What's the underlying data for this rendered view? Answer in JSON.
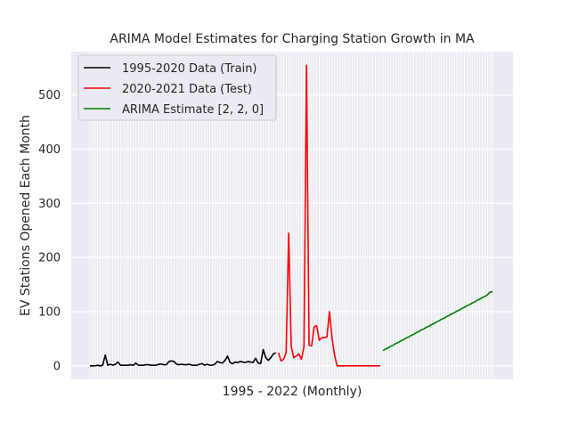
{
  "chart_data": {
    "type": "line",
    "title": "ARIMA Model Estimates for Charging Station Growth in MA",
    "xlabel": "1995 - 2022 (Monthly)",
    "ylabel": "EV Stations Opened Each Month",
    "ylim": [
      -25,
      580
    ],
    "yticks": [
      0,
      100,
      200,
      300,
      400,
      500
    ],
    "grid": true,
    "legend_position": "upper-left",
    "colors": {
      "background": "#eaeaf2",
      "grid": "#ffffff",
      "train": "#000000",
      "test": "#ff0000",
      "estimate": "#008000"
    },
    "series": [
      {
        "name": "1995-2020 Data (Train)",
        "color": "#000000",
        "values": [
          0,
          0,
          0,
          1,
          0,
          1,
          20,
          1,
          3,
          1,
          3,
          7,
          1,
          1,
          1,
          1,
          2,
          1,
          5,
          1,
          1,
          1,
          2,
          2,
          1,
          1,
          1,
          3,
          3,
          2,
          2,
          8,
          9,
          8,
          3,
          2,
          3,
          2,
          2,
          3,
          1,
          1,
          1,
          3,
          4,
          1,
          3,
          1,
          1,
          3,
          8,
          6,
          5,
          10,
          18,
          6,
          4,
          7,
          6,
          8,
          7,
          6,
          8,
          7,
          6,
          14,
          5,
          4,
          30,
          15,
          10,
          15,
          22,
          24
        ]
      },
      {
        "name": "2020-2021 Data (Test)",
        "color": "#ff0000",
        "values": [
          24,
          9,
          12,
          25,
          245,
          35,
          15,
          18,
          22,
          12,
          35,
          555,
          38,
          37,
          72,
          74,
          47,
          52,
          52,
          53,
          100,
          52,
          20,
          0,
          0,
          0,
          0,
          0,
          0,
          0,
          0,
          0,
          0,
          0,
          0,
          0,
          0,
          0,
          0,
          0,
          0
        ]
      },
      {
        "name": "ARIMA Estimate [2, 2, 0]",
        "color": "#008000",
        "values": [
          28,
          31,
          33,
          36,
          38,
          41,
          43,
          46,
          48,
          51,
          53,
          56,
          58,
          61,
          63,
          66,
          68,
          71,
          73,
          76,
          78,
          81,
          83,
          86,
          88,
          91,
          93,
          96,
          98,
          101,
          103,
          106,
          108,
          111,
          113,
          116,
          118,
          121,
          123,
          126,
          128,
          131,
          136,
          137
        ]
      }
    ]
  }
}
